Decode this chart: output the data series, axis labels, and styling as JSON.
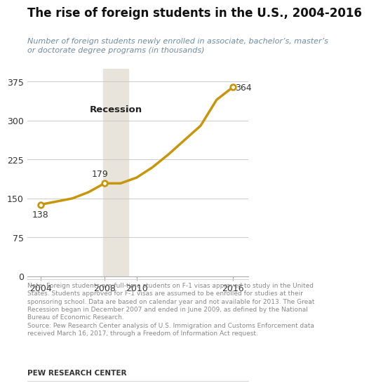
{
  "title": "The rise of foreign students in the U.S., 2004-2016",
  "subtitle": "Number of foreign students newly enrolled in associate, bachelor’s, master’s\nor doctorate degree programs (in thousands)",
  "years": [
    2004,
    2005,
    2006,
    2007,
    2008,
    2009,
    2010,
    2011,
    2012,
    2014,
    2015,
    2016
  ],
  "values": [
    138,
    144,
    150,
    162,
    179,
    179,
    190,
    210,
    235,
    290,
    340,
    364
  ],
  "line_color": "#C8960C",
  "recession_start": 2007.917,
  "recession_end": 2009.5,
  "recession_color": "#E8E4DC",
  "recession_label": "Recession",
  "point_labels": [
    [
      2004,
      138,
      "138"
    ],
    [
      2008,
      179,
      "179"
    ],
    [
      2016,
      364,
      "364"
    ]
  ],
  "yticks": [
    0,
    75,
    150,
    225,
    300,
    375
  ],
  "xticks": [
    2004,
    2008,
    2010,
    2016
  ],
  "ylim": [
    0,
    400
  ],
  "xlim": [
    2003.2,
    2017.0
  ],
  "note_text": "Note: Foreign students are full-time students on F-1 visas approved to study in the United\nStates. Students approved for F-1 visas are assumed to be enrolled for studies at their\nsponsoring school. Data are based on calendar year and not available for 2013. The Great\nRecession began in December 2007 and ended in June 2009, as defined by the National\nBureau of Economic Research.\nSource: Pew Research Center analysis of U.S. Immigration and Customs Enforcement data\nreceived March 16, 2017, through a Freedom of Information Act request.",
  "branding": "PEW RESEARCH CENTER",
  "background_color": "#FFFFFF",
  "grid_color": "#CCCCCC",
  "text_color": "#333333",
  "note_color": "#888888",
  "title_fontsize": 12,
  "subtitle_fontsize": 8,
  "note_fontsize": 6.5,
  "tick_fontsize": 9,
  "annotation_fontsize": 9,
  "recession_label_fontsize": 9.5,
  "branding_fontsize": 7.5
}
